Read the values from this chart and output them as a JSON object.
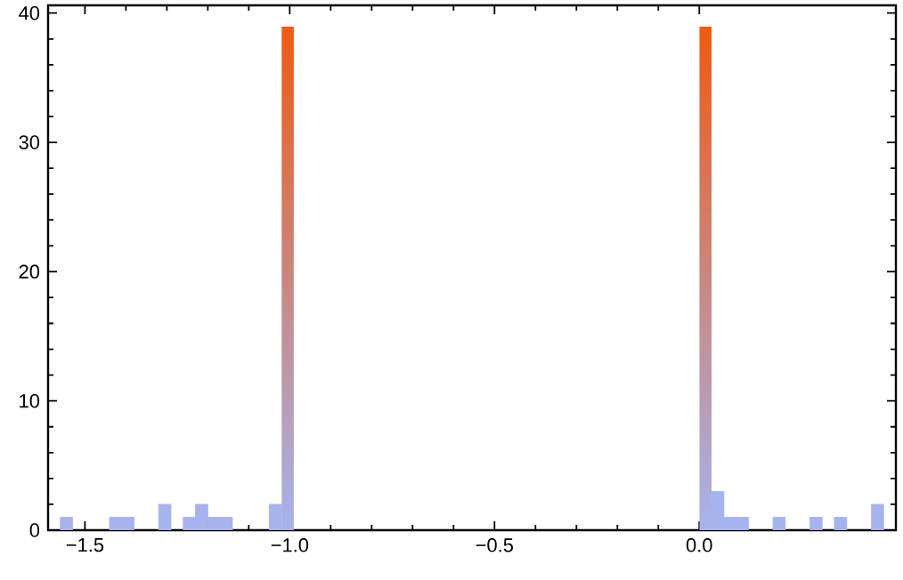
{
  "chart_data": {
    "type": "histogram",
    "bins": [
      -1.56,
      -1.53,
      -1.5,
      -1.47,
      -1.44,
      -1.41,
      -1.38,
      -1.35,
      -1.32,
      -1.29,
      -1.26,
      -1.23,
      -1.2,
      -1.17,
      -1.14,
      -1.11,
      -1.08,
      -1.05,
      -1.02,
      -0.99,
      -0.96,
      -0.93,
      -0.9,
      -0.87,
      -0.84,
      -0.81,
      -0.78,
      -0.75,
      -0.72,
      -0.69,
      -0.66,
      -0.63,
      -0.6,
      -0.57,
      -0.54,
      -0.51,
      -0.48,
      -0.45,
      -0.42,
      -0.39,
      -0.36,
      -0.33,
      -0.3,
      -0.27,
      -0.24,
      -0.21,
      -0.18,
      -0.15,
      -0.12,
      -0.09,
      -0.06,
      -0.03,
      0,
      0.03,
      0.06,
      0.09,
      0.12,
      0.15,
      0.18,
      0.21,
      0.24,
      0.27,
      0.3,
      0.33,
      0.36,
      0.39,
      0.42,
      0.45
    ],
    "values": [
      1,
      0,
      0,
      0,
      1,
      1,
      0,
      0,
      2,
      0,
      1,
      2,
      1,
      1,
      0,
      0,
      0,
      2,
      39,
      0,
      0,
      0,
      0,
      0,
      0,
      0,
      0,
      0,
      0,
      0,
      0,
      0,
      0,
      0,
      0,
      0,
      0,
      0,
      0,
      0,
      0,
      0,
      0,
      0,
      0,
      0,
      0,
      0,
      0,
      0,
      0,
      0,
      39,
      3,
      1,
      1,
      0,
      0,
      1,
      0,
      0,
      1,
      0,
      1,
      0,
      0,
      2
    ],
    "color": "#a6b3ec",
    "xlim": [
      -1.59,
      0.48
    ],
    "ylim": [
      0,
      40.6
    ],
    "xticks": [
      {
        "value": -1.5,
        "label": "−1.5"
      },
      {
        "value": -1.0,
        "label": "−1.0"
      },
      {
        "value": -0.5,
        "label": "−0.5"
      },
      {
        "value": 0,
        "label": "0.0"
      }
    ],
    "yticks": [
      0,
      10,
      20,
      30,
      40
    ]
  }
}
